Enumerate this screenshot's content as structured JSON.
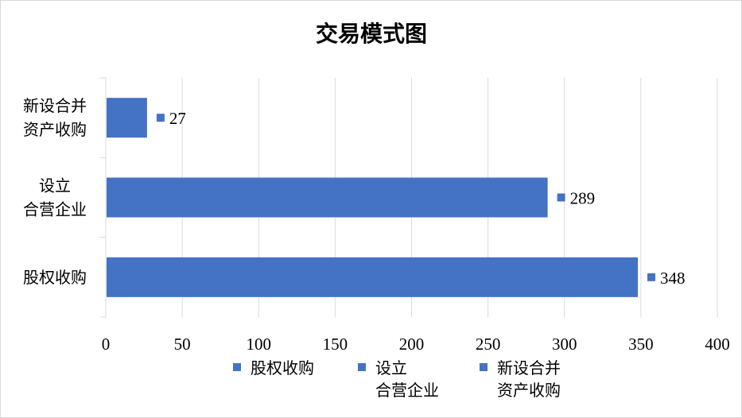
{
  "chart_data": {
    "type": "bar",
    "orientation": "horizontal",
    "title": "交易模式图",
    "categories": [
      [
        "新设合并",
        "资产收购"
      ],
      [
        "设立",
        "合营企业"
      ],
      [
        "股权收购"
      ]
    ],
    "values": [
      27,
      289,
      348
    ],
    "xlim": [
      0,
      400
    ],
    "xticks": [
      0,
      50,
      100,
      150,
      200,
      250,
      300,
      350,
      400
    ],
    "grid": "vertical",
    "data_labels": true,
    "legend": {
      "position": "bottom",
      "entries": [
        [
          "股权收购"
        ],
        [
          "设立",
          "合营企业"
        ],
        [
          "新设合并",
          "资产收购"
        ]
      ]
    },
    "colors": {
      "bar": "#4472c4",
      "grid": "#d9d9d9",
      "axis": "#d9d9d9"
    }
  }
}
